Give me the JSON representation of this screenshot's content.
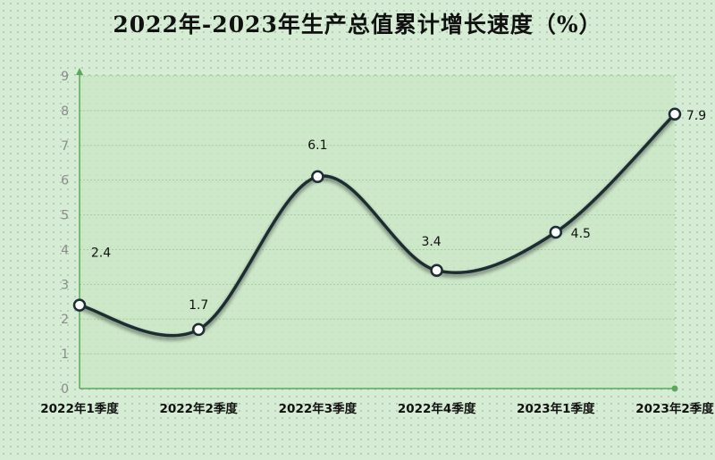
{
  "chart_data": {
    "type": "line",
    "title": "2022年-2023年生产总值累计增长速度（%）",
    "categories": [
      "2022年1季度",
      "2022年2季度",
      "2022年3季度",
      "2022年4季度",
      "2023年1季度",
      "2023年2季度"
    ],
    "series": [
      {
        "values": [
          2.4,
          1.7,
          6.1,
          3.4,
          4.5,
          7.9
        ],
        "color": "#1e2d33"
      }
    ],
    "data_labels": [
      "2.4",
      "1.7",
      "6.1",
      "3.4",
      "4.5",
      "7.9"
    ],
    "yticks": [
      "0",
      "1",
      "2",
      "3",
      "4",
      "5",
      "6",
      "7",
      "8",
      "9"
    ],
    "ylim": [
      0,
      9
    ],
    "smooth": true,
    "grid": true,
    "legend": "none",
    "colors": {
      "background": "#d6ecd5",
      "plot_area": "#c9e6c4",
      "axis": "#5aa85a",
      "grid": "#9fcf9a"
    }
  }
}
